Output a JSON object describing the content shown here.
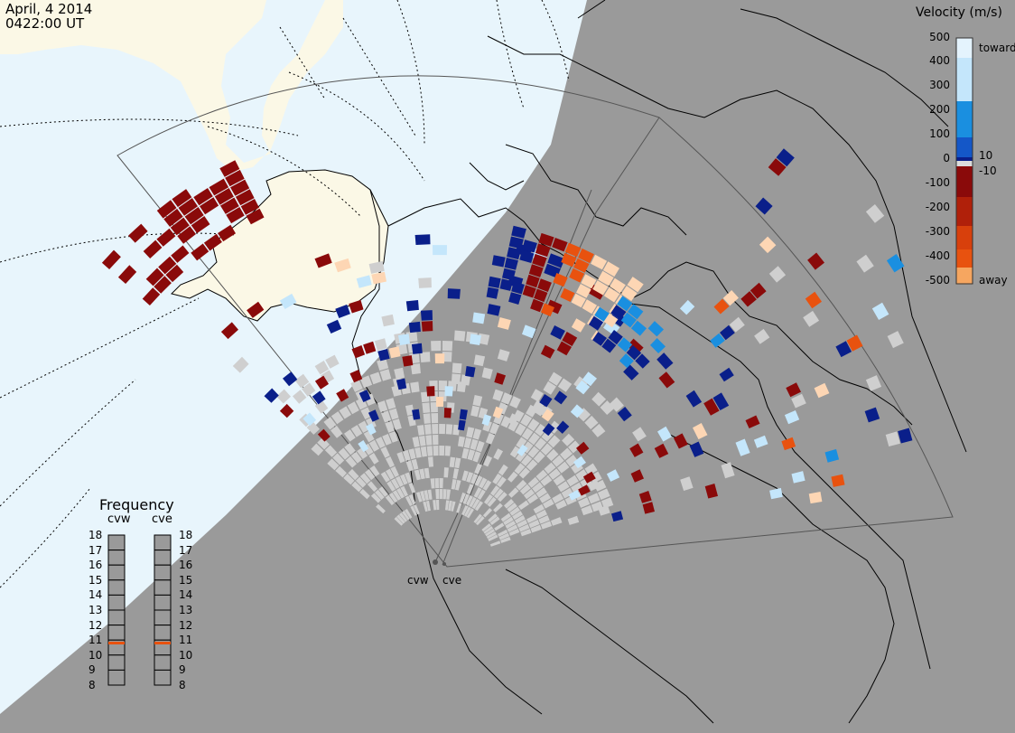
{
  "header": {
    "date": "April, 4 2014",
    "time": "0422:00 UT"
  },
  "velocity_scale": {
    "title": "Velocity (m/s)",
    "ticks": [
      "500",
      "400",
      "300",
      "200",
      "100",
      "10",
      "0",
      "-10",
      "-100",
      "-200",
      "-300",
      "-400",
      "-500"
    ],
    "toward_label": "toward",
    "away_label": "away",
    "colors": {
      "toward_light": "#c4e6fb",
      "toward_mid": "#1a8fe0",
      "toward_dark": "#0a1f8a",
      "away_dark": "#8a0a0a",
      "away_mid": "#e8520f",
      "away_light": "#fdd6b4",
      "ground_scatter": "#cfcfcf"
    }
  },
  "frequency": {
    "title": "Frequency",
    "columns": [
      {
        "name": "cvw",
        "value_mhz": 10.8
      },
      {
        "name": "cve",
        "value_mhz": 10.8
      }
    ],
    "scale": [
      "18",
      "17",
      "16",
      "15",
      "14",
      "13",
      "12",
      "11",
      "10",
      "9",
      "8"
    ],
    "marker_color": "#e8520f"
  },
  "radars": [
    {
      "name": "cvw"
    },
    {
      "name": "cve"
    }
  ],
  "map_colors": {
    "night": "#9a9a9a",
    "ocean_day": "#e8f5fc",
    "land_day": "#fbf8e6",
    "coast": "#000000"
  }
}
